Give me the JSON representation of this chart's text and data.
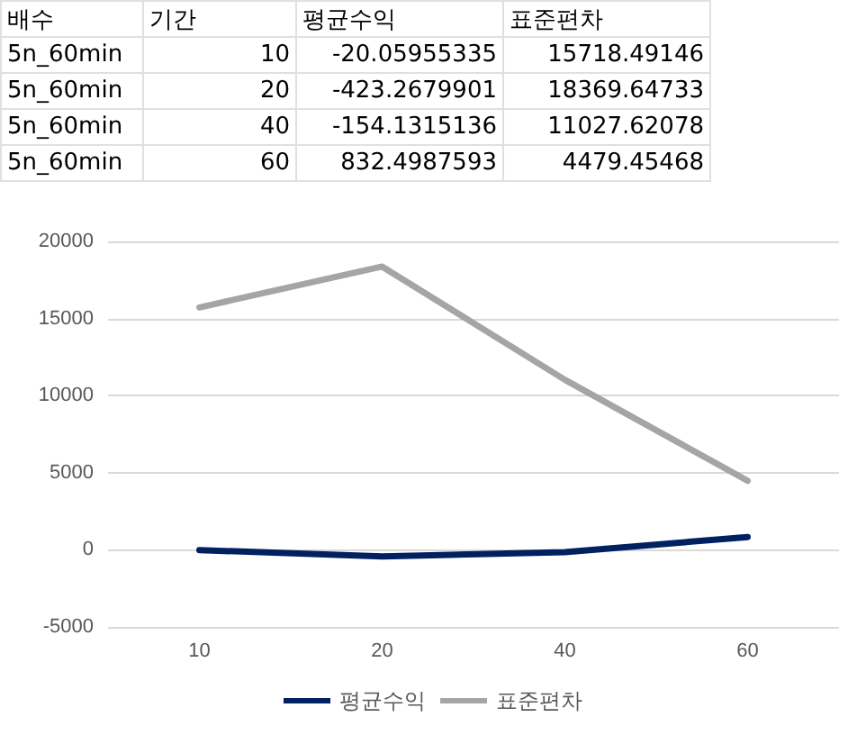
{
  "chart_data": {
    "type": "line",
    "categories": [
      "10",
      "20",
      "40",
      "60"
    ],
    "annotations": [
      "배수",
      "기간",
      "평균수익",
      "표준편차",
      "5n_60min",
      "10",
      "-20.05955335",
      "15718.49146",
      "5n_60min",
      "20",
      "-423.2679901",
      "18369.64733",
      "5n_60min",
      "40",
      "-154.1315136",
      "11027.62078",
      "5n_60min",
      "60",
      "832.4987593",
      "4479.45468"
    ],
    "series": [
      {
        "name": "평균수익",
        "color": "#002060",
        "values": [
          -20.05955335,
          -423.2679901,
          -154.1315136,
          832.4987593
        ]
      },
      {
        "name": "표준편차",
        "color": "#a5a5a5",
        "values": [
          15718.49146,
          18369.64733,
          11027.62078,
          4479.45468
        ]
      }
    ],
    "ylim": [
      -5000,
      20000
    ],
    "yticks": [
      -5000,
      0,
      5000,
      10000,
      15000,
      20000
    ],
    "grid": "y",
    "legend": "bottom",
    "marker": "none",
    "line_style": "solid"
  }
}
